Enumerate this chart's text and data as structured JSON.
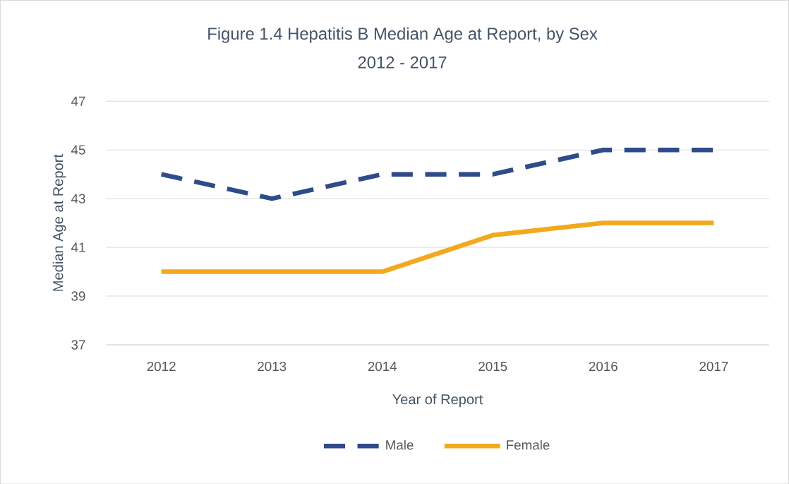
{
  "chart_data": {
    "type": "line",
    "title": "Figure 1.4 Hepatitis B  Median Age at Report, by Sex",
    "subtitle": "2012 - 2017",
    "xlabel": "Year of Report",
    "ylabel": "Median Age at Report",
    "categories": [
      "2012",
      "2013",
      "2014",
      "2015",
      "2016",
      "2017"
    ],
    "series": [
      {
        "name": "Male",
        "color": "#2f4b8c",
        "line_style": "dashed",
        "values": [
          44,
          43,
          44,
          44,
          45,
          45
        ]
      },
      {
        "name": "Female",
        "color": "#f2a91c",
        "line_style": "solid",
        "values": [
          40,
          40,
          40,
          41.5,
          42,
          42
        ]
      }
    ],
    "ylim": [
      37,
      47
    ],
    "yticks": [
      37,
      39,
      41,
      43,
      45,
      47
    ],
    "grid": "y",
    "legend": "bottom"
  }
}
